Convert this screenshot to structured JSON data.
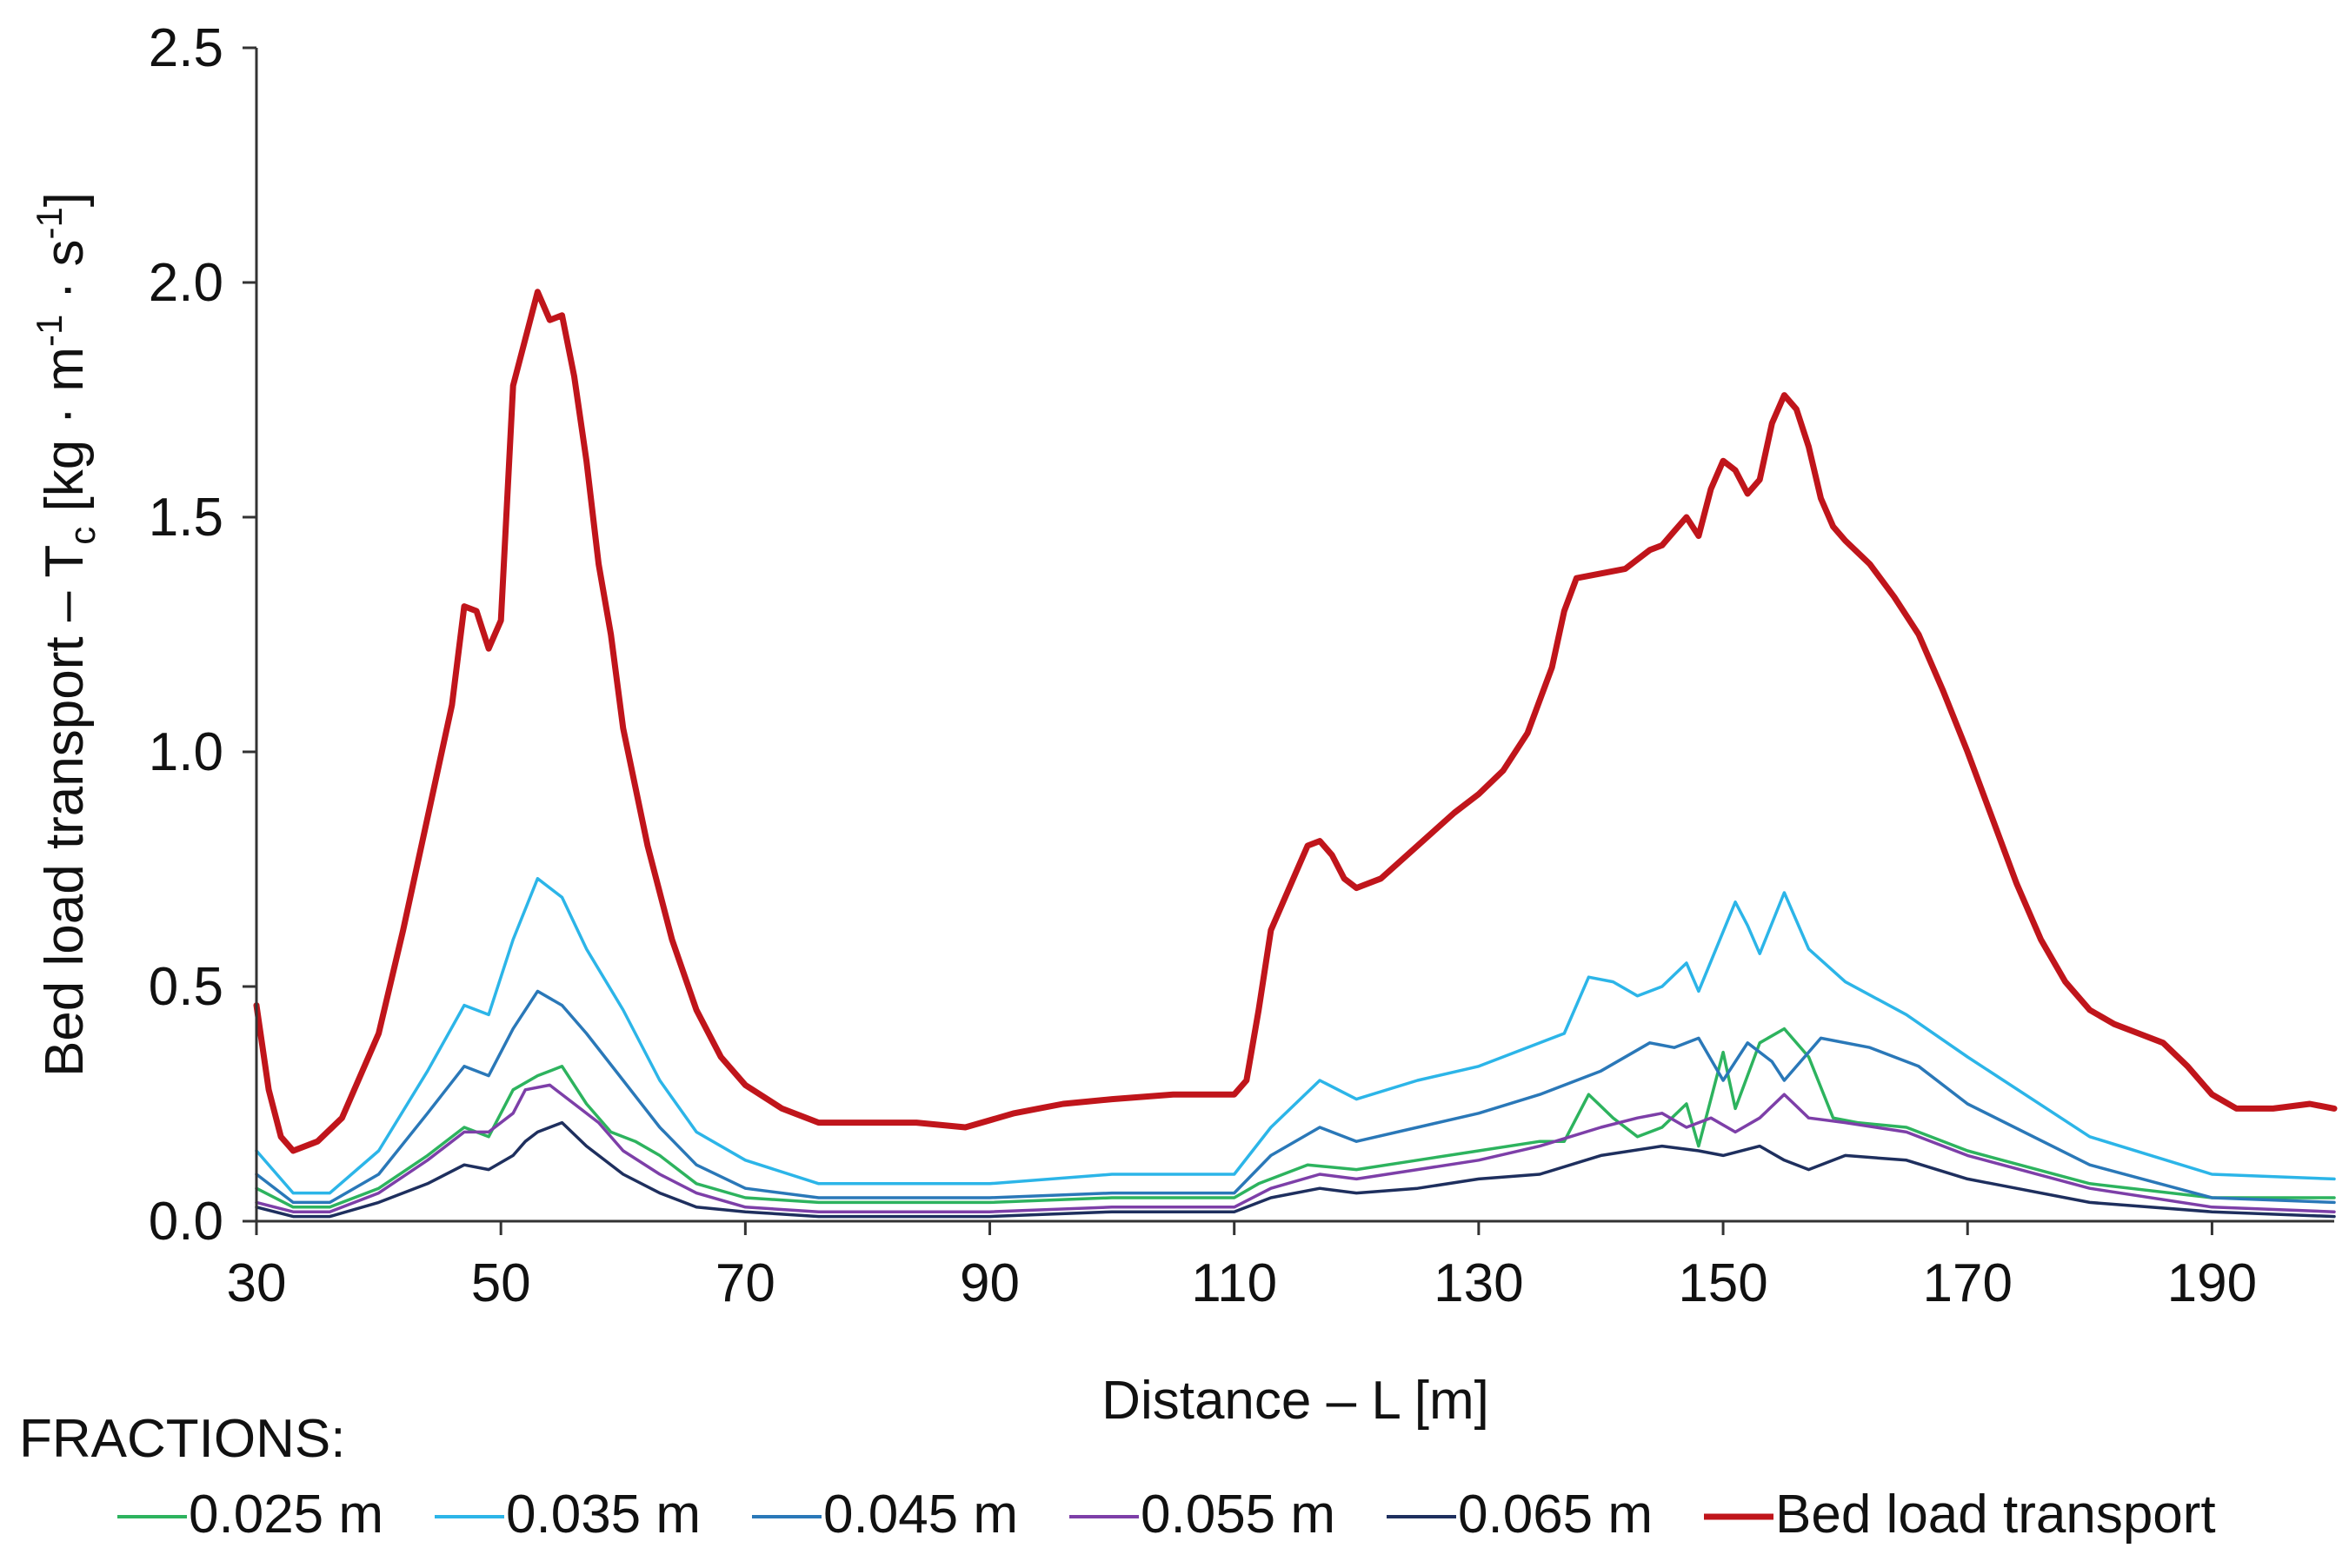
{
  "chart_data": {
    "type": "line",
    "title": "",
    "xlabel": "Distance – L [m]",
    "ylabel": "Bed load transport – T",
    "ylabel_subscript": "c",
    "ylabel_units_open": " [kg · m",
    "ylabel_units_exp1": "-1",
    "ylabel_units_mid": " · s",
    "ylabel_units_exp2": "-1",
    "ylabel_units_close": "]",
    "xlim": [
      30,
      200
    ],
    "ylim": [
      0,
      2.5
    ],
    "xticks": [
      "30",
      "50",
      "70",
      "90",
      "110",
      "130",
      "150",
      "170",
      "190"
    ],
    "yticks": [
      "0.0",
      "0.5",
      "1.0",
      "1.5",
      "2.0",
      "2.5"
    ],
    "legend_title": "FRACTIONS:",
    "legend_position": "bottom",
    "series": [
      {
        "name": "0.025 m",
        "color": "#2db35e",
        "points": [
          [
            30,
            0.07
          ],
          [
            33,
            0.03
          ],
          [
            36,
            0.03
          ],
          [
            40,
            0.07
          ],
          [
            44,
            0.14
          ],
          [
            47,
            0.2
          ],
          [
            49,
            0.18
          ],
          [
            51,
            0.28
          ],
          [
            53,
            0.31
          ],
          [
            55,
            0.33
          ],
          [
            57,
            0.25
          ],
          [
            59,
            0.19
          ],
          [
            61,
            0.17
          ],
          [
            63,
            0.14
          ],
          [
            66,
            0.08
          ],
          [
            70,
            0.05
          ],
          [
            76,
            0.04
          ],
          [
            90,
            0.04
          ],
          [
            100,
            0.05
          ],
          [
            110,
            0.05
          ],
          [
            112,
            0.08
          ],
          [
            116,
            0.12
          ],
          [
            120,
            0.11
          ],
          [
            125,
            0.13
          ],
          [
            130,
            0.15
          ],
          [
            135,
            0.17
          ],
          [
            137,
            0.17
          ],
          [
            139,
            0.27
          ],
          [
            141,
            0.22
          ],
          [
            143,
            0.18
          ],
          [
            145,
            0.2
          ],
          [
            147,
            0.25
          ],
          [
            148,
            0.16
          ],
          [
            150,
            0.36
          ],
          [
            151,
            0.24
          ],
          [
            153,
            0.38
          ],
          [
            155,
            0.41
          ],
          [
            157,
            0.35
          ],
          [
            159,
            0.22
          ],
          [
            161,
            0.21
          ],
          [
            165,
            0.2
          ],
          [
            170,
            0.15
          ],
          [
            180,
            0.08
          ],
          [
            190,
            0.05
          ],
          [
            200,
            0.05
          ]
        ]
      },
      {
        "name": "0.035 m",
        "color": "#2cb5e8",
        "points": [
          [
            30,
            0.15
          ],
          [
            33,
            0.06
          ],
          [
            36,
            0.06
          ],
          [
            40,
            0.15
          ],
          [
            44,
            0.32
          ],
          [
            47,
            0.46
          ],
          [
            49,
            0.44
          ],
          [
            51,
            0.6
          ],
          [
            53,
            0.73
          ],
          [
            55,
            0.69
          ],
          [
            57,
            0.58
          ],
          [
            60,
            0.45
          ],
          [
            63,
            0.3
          ],
          [
            66,
            0.19
          ],
          [
            70,
            0.13
          ],
          [
            76,
            0.08
          ],
          [
            90,
            0.08
          ],
          [
            100,
            0.1
          ],
          [
            110,
            0.1
          ],
          [
            113,
            0.2
          ],
          [
            117,
            0.3
          ],
          [
            120,
            0.26
          ],
          [
            125,
            0.3
          ],
          [
            130,
            0.33
          ],
          [
            135,
            0.38
          ],
          [
            137,
            0.4
          ],
          [
            139,
            0.52
          ],
          [
            141,
            0.51
          ],
          [
            143,
            0.48
          ],
          [
            145,
            0.5
          ],
          [
            147,
            0.55
          ],
          [
            148,
            0.49
          ],
          [
            151,
            0.68
          ],
          [
            152,
            0.63
          ],
          [
            153,
            0.57
          ],
          [
            155,
            0.7
          ],
          [
            157,
            0.58
          ],
          [
            160,
            0.51
          ],
          [
            165,
            0.44
          ],
          [
            170,
            0.35
          ],
          [
            180,
            0.18
          ],
          [
            190,
            0.1
          ],
          [
            200,
            0.09
          ]
        ]
      },
      {
        "name": "0.045 m",
        "color": "#2a78b8",
        "points": [
          [
            30,
            0.1
          ],
          [
            33,
            0.04
          ],
          [
            36,
            0.04
          ],
          [
            40,
            0.1
          ],
          [
            44,
            0.23
          ],
          [
            47,
            0.33
          ],
          [
            49,
            0.31
          ],
          [
            51,
            0.41
          ],
          [
            53,
            0.49
          ],
          [
            55,
            0.46
          ],
          [
            57,
            0.4
          ],
          [
            60,
            0.3
          ],
          [
            63,
            0.2
          ],
          [
            66,
            0.12
          ],
          [
            70,
            0.07
          ],
          [
            76,
            0.05
          ],
          [
            90,
            0.05
          ],
          [
            100,
            0.06
          ],
          [
            110,
            0.06
          ],
          [
            113,
            0.14
          ],
          [
            117,
            0.2
          ],
          [
            120,
            0.17
          ],
          [
            125,
            0.2
          ],
          [
            130,
            0.23
          ],
          [
            135,
            0.27
          ],
          [
            140,
            0.32
          ],
          [
            144,
            0.38
          ],
          [
            146,
            0.37
          ],
          [
            148,
            0.39
          ],
          [
            150,
            0.3
          ],
          [
            152,
            0.38
          ],
          [
            154,
            0.34
          ],
          [
            155,
            0.3
          ],
          [
            158,
            0.39
          ],
          [
            162,
            0.37
          ],
          [
            166,
            0.33
          ],
          [
            170,
            0.25
          ],
          [
            180,
            0.12
          ],
          [
            190,
            0.05
          ],
          [
            200,
            0.04
          ]
        ]
      },
      {
        "name": "0.055 m",
        "color": "#7d3fa8",
        "points": [
          [
            30,
            0.04
          ],
          [
            33,
            0.02
          ],
          [
            36,
            0.02
          ],
          [
            40,
            0.06
          ],
          [
            44,
            0.13
          ],
          [
            47,
            0.19
          ],
          [
            49,
            0.19
          ],
          [
            51,
            0.23
          ],
          [
            52,
            0.28
          ],
          [
            54,
            0.29
          ],
          [
            56,
            0.25
          ],
          [
            58,
            0.21
          ],
          [
            60,
            0.15
          ],
          [
            63,
            0.1
          ],
          [
            66,
            0.06
          ],
          [
            70,
            0.03
          ],
          [
            76,
            0.02
          ],
          [
            90,
            0.02
          ],
          [
            100,
            0.03
          ],
          [
            110,
            0.03
          ],
          [
            113,
            0.07
          ],
          [
            117,
            0.1
          ],
          [
            120,
            0.09
          ],
          [
            125,
            0.11
          ],
          [
            130,
            0.13
          ],
          [
            135,
            0.16
          ],
          [
            140,
            0.2
          ],
          [
            143,
            0.22
          ],
          [
            145,
            0.23
          ],
          [
            147,
            0.2
          ],
          [
            149,
            0.22
          ],
          [
            151,
            0.19
          ],
          [
            153,
            0.22
          ],
          [
            155,
            0.27
          ],
          [
            157,
            0.22
          ],
          [
            160,
            0.21
          ],
          [
            165,
            0.19
          ],
          [
            170,
            0.14
          ],
          [
            180,
            0.07
          ],
          [
            190,
            0.03
          ],
          [
            200,
            0.02
          ]
        ]
      },
      {
        "name": "0.065 m",
        "color": "#1e2f5e",
        "points": [
          [
            30,
            0.03
          ],
          [
            33,
            0.01
          ],
          [
            36,
            0.01
          ],
          [
            40,
            0.04
          ],
          [
            44,
            0.08
          ],
          [
            47,
            0.12
          ],
          [
            49,
            0.11
          ],
          [
            51,
            0.14
          ],
          [
            52,
            0.17
          ],
          [
            53,
            0.19
          ],
          [
            55,
            0.21
          ],
          [
            57,
            0.16
          ],
          [
            60,
            0.1
          ],
          [
            63,
            0.06
          ],
          [
            66,
            0.03
          ],
          [
            70,
            0.02
          ],
          [
            76,
            0.01
          ],
          [
            90,
            0.01
          ],
          [
            100,
            0.02
          ],
          [
            110,
            0.02
          ],
          [
            113,
            0.05
          ],
          [
            117,
            0.07
          ],
          [
            120,
            0.06
          ],
          [
            125,
            0.07
          ],
          [
            130,
            0.09
          ],
          [
            135,
            0.1
          ],
          [
            140,
            0.14
          ],
          [
            145,
            0.16
          ],
          [
            148,
            0.15
          ],
          [
            150,
            0.14
          ],
          [
            153,
            0.16
          ],
          [
            155,
            0.13
          ],
          [
            157,
            0.11
          ],
          [
            160,
            0.14
          ],
          [
            165,
            0.13
          ],
          [
            170,
            0.09
          ],
          [
            180,
            0.04
          ],
          [
            190,
            0.02
          ],
          [
            200,
            0.01
          ]
        ]
      },
      {
        "name": "Bed load transport",
        "color": "#c0151b",
        "points": [
          [
            30,
            0.46
          ],
          [
            31,
            0.28
          ],
          [
            32,
            0.18
          ],
          [
            33,
            0.15
          ],
          [
            35,
            0.17
          ],
          [
            37,
            0.22
          ],
          [
            40,
            0.4
          ],
          [
            42,
            0.62
          ],
          [
            44,
            0.86
          ],
          [
            46,
            1.1
          ],
          [
            47,
            1.31
          ],
          [
            48,
            1.3
          ],
          [
            49,
            1.22
          ],
          [
            50,
            1.28
          ],
          [
            51,
            1.78
          ],
          [
            52,
            1.88
          ],
          [
            53,
            1.98
          ],
          [
            54,
            1.92
          ],
          [
            55,
            1.93
          ],
          [
            56,
            1.8
          ],
          [
            57,
            1.62
          ],
          [
            58,
            1.4
          ],
          [
            59,
            1.25
          ],
          [
            60,
            1.05
          ],
          [
            62,
            0.8
          ],
          [
            64,
            0.6
          ],
          [
            66,
            0.45
          ],
          [
            68,
            0.35
          ],
          [
            70,
            0.29
          ],
          [
            73,
            0.24
          ],
          [
            76,
            0.21
          ],
          [
            80,
            0.21
          ],
          [
            84,
            0.21
          ],
          [
            88,
            0.2
          ],
          [
            92,
            0.23
          ],
          [
            96,
            0.25
          ],
          [
            100,
            0.26
          ],
          [
            105,
            0.27
          ],
          [
            110,
            0.27
          ],
          [
            111,
            0.3
          ],
          [
            112,
            0.45
          ],
          [
            113,
            0.62
          ],
          [
            115,
            0.74
          ],
          [
            116,
            0.8
          ],
          [
            117,
            0.81
          ],
          [
            118,
            0.78
          ],
          [
            119,
            0.73
          ],
          [
            120,
            0.71
          ],
          [
            122,
            0.73
          ],
          [
            125,
            0.8
          ],
          [
            128,
            0.87
          ],
          [
            130,
            0.91
          ],
          [
            132,
            0.96
          ],
          [
            134,
            1.04
          ],
          [
            136,
            1.18
          ],
          [
            137,
            1.3
          ],
          [
            138,
            1.37
          ],
          [
            140,
            1.38
          ],
          [
            142,
            1.39
          ],
          [
            143,
            1.41
          ],
          [
            144,
            1.43
          ],
          [
            145,
            1.44
          ],
          [
            146,
            1.47
          ],
          [
            147,
            1.5
          ],
          [
            148,
            1.46
          ],
          [
            149,
            1.56
          ],
          [
            150,
            1.62
          ],
          [
            151,
            1.6
          ],
          [
            152,
            1.55
          ],
          [
            153,
            1.58
          ],
          [
            154,
            1.7
          ],
          [
            155,
            1.76
          ],
          [
            156,
            1.73
          ],
          [
            157,
            1.65
          ],
          [
            158,
            1.54
          ],
          [
            159,
            1.48
          ],
          [
            160,
            1.45
          ],
          [
            162,
            1.4
          ],
          [
            164,
            1.33
          ],
          [
            166,
            1.25
          ],
          [
            168,
            1.13
          ],
          [
            170,
            1.0
          ],
          [
            172,
            0.86
          ],
          [
            174,
            0.72
          ],
          [
            176,
            0.6
          ],
          [
            178,
            0.51
          ],
          [
            180,
            0.45
          ],
          [
            182,
            0.42
          ],
          [
            184,
            0.4
          ],
          [
            186,
            0.38
          ],
          [
            188,
            0.33
          ],
          [
            190,
            0.27
          ],
          [
            192,
            0.24
          ],
          [
            195,
            0.24
          ],
          [
            198,
            0.25
          ],
          [
            200,
            0.24
          ]
        ]
      }
    ]
  }
}
